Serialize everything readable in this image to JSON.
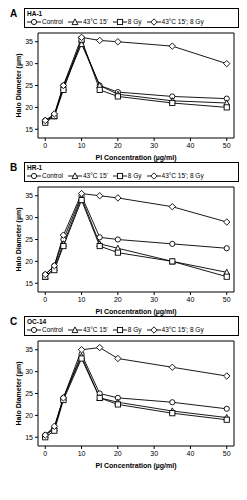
{
  "chart_data": [
    {
      "type": "line",
      "title": "A",
      "legend_title": "HA-1",
      "x_label": "PI Concentration (µg/ml)",
      "y_label": "Halo Diameter (µm)",
      "x": [
        0,
        2.5,
        5,
        10,
        15,
        20,
        35,
        50
      ],
      "xlim": [
        -2,
        52
      ],
      "xticks": [
        0,
        10,
        20,
        30,
        40,
        50
      ],
      "ylim": [
        13,
        37
      ],
      "yticks": [
        15,
        20,
        25,
        30,
        35
      ],
      "series": [
        {
          "name": "Control",
          "color": "#000000",
          "marker": "circle",
          "values": [
            17,
            18,
            25,
            35,
            25,
            23.5,
            22.5,
            22
          ]
        },
        {
          "name": "43°C 15'",
          "color": "#000000",
          "marker": "triangle",
          "values": [
            17,
            18,
            24.5,
            34.5,
            25,
            23,
            21.5,
            21
          ]
        },
        {
          "name": "8 Gy",
          "color": "#000000",
          "marker": "square",
          "values": [
            16.5,
            18,
            24,
            35.5,
            24,
            22.5,
            21,
            20
          ]
        },
        {
          "name": "43°C 15'; 8 Gy",
          "color": "#000000",
          "marker": "diamond",
          "values": [
            17,
            18.5,
            25,
            36,
            35.3,
            35,
            34,
            30
          ]
        }
      ]
    },
    {
      "type": "line",
      "title": "B",
      "legend_title": "HR-1",
      "x_label": "PI Concentration (µg/ml)",
      "y_label": "Halo Diameter (µm)",
      "x": [
        0,
        2.5,
        5,
        10,
        15,
        20,
        35,
        50
      ],
      "xlim": [
        -2,
        52
      ],
      "xticks": [
        0,
        10,
        20,
        30,
        40,
        50
      ],
      "ylim": [
        13,
        37
      ],
      "yticks": [
        15,
        20,
        25,
        30,
        35
      ],
      "series": [
        {
          "name": "Control",
          "color": "#000000",
          "marker": "circle",
          "values": [
            17,
            19,
            25,
            35,
            25.5,
            25,
            24,
            23
          ]
        },
        {
          "name": "43°C 15'",
          "color": "#000000",
          "marker": "triangle",
          "values": [
            16.5,
            18.5,
            24,
            34.5,
            24,
            23,
            20,
            17.5
          ]
        },
        {
          "name": "8 Gy",
          "color": "#000000",
          "marker": "square",
          "values": [
            16.5,
            18,
            23.5,
            34,
            23.5,
            22,
            20,
            16.5
          ]
        },
        {
          "name": "43°C 15'; 8 Gy",
          "color": "#000000",
          "marker": "diamond",
          "values": [
            17,
            19,
            26,
            35.5,
            35,
            34.5,
            32.5,
            29
          ]
        }
      ]
    },
    {
      "type": "line",
      "title": "C",
      "legend_title": "OC-14",
      "x_label": "PI Concentration (µg/ml)",
      "y_label": "Halo Diameter (µm)",
      "x": [
        0,
        2.5,
        5,
        10,
        15,
        20,
        35,
        50
      ],
      "xlim": [
        -2,
        52
      ],
      "xticks": [
        0,
        10,
        20,
        30,
        40,
        50
      ],
      "ylim": [
        13,
        37
      ],
      "yticks": [
        15,
        20,
        25,
        30,
        35
      ],
      "series": [
        {
          "name": "Control",
          "color": "#000000",
          "marker": "circle",
          "values": [
            15.5,
            17,
            24,
            34,
            25,
            24,
            23,
            21.5
          ]
        },
        {
          "name": "43°C 15'",
          "color": "#000000",
          "marker": "triangle",
          "values": [
            15.5,
            17,
            24,
            33.5,
            24,
            23,
            21,
            19.5
          ]
        },
        {
          "name": "8 Gy",
          "color": "#000000",
          "marker": "square",
          "values": [
            15,
            16.5,
            23.5,
            33,
            24,
            22.5,
            20.5,
            19
          ]
        },
        {
          "name": "43°C 15'; 8 Gy",
          "color": "#000000",
          "marker": "diamond",
          "values": [
            15.5,
            17.5,
            24,
            35,
            35.5,
            33,
            31,
            29
          ]
        }
      ]
    }
  ]
}
